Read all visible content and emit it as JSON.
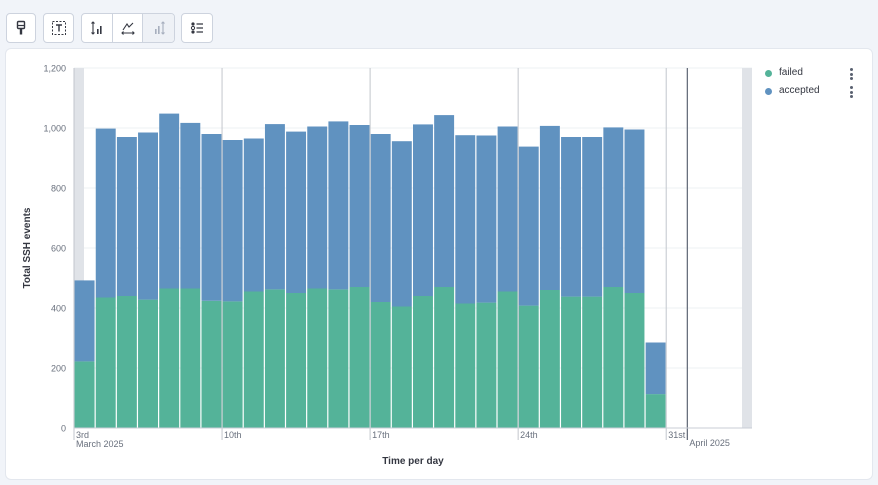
{
  "toolbar": {
    "buttons": [
      {
        "name": "paintbrush-icon"
      },
      {
        "name": "text-icon"
      }
    ],
    "group": [
      {
        "name": "axis-left-icon",
        "disabled": false
      },
      {
        "name": "axis-bottom-icon",
        "disabled": false
      },
      {
        "name": "axis-right-icon",
        "disabled": true
      }
    ],
    "legend_button": {
      "name": "legend-list-icon"
    }
  },
  "colors": {
    "failed": "#54b399",
    "accepted": "#6092c0",
    "grid": "#eef0f3",
    "shade": "#e0e3e8"
  },
  "chart_data": {
    "type": "bar",
    "stacked": true,
    "ylabel": "Total SSH events",
    "xlabel": "Time per day",
    "ylim": [
      0,
      1200
    ],
    "yticks": [
      "0",
      "200",
      "400",
      "600",
      "800",
      "1,000",
      "1,200"
    ],
    "ytick_values": [
      0,
      200,
      400,
      600,
      800,
      1000,
      1200
    ],
    "x_tick_labels": [
      {
        "day": 0,
        "label": "3rd",
        "sub": "March 2025"
      },
      {
        "day": 7,
        "label": "10th",
        "sub": ""
      },
      {
        "day": 14,
        "label": "17th",
        "sub": ""
      },
      {
        "day": 21,
        "label": "24th",
        "sub": ""
      },
      {
        "day": 28,
        "label": "31st",
        "sub": ""
      },
      {
        "day": 29,
        "label": "",
        "sub": "April 2025"
      }
    ],
    "legend_placement": "right",
    "series": [
      {
        "name": "failed",
        "color": "#54b399",
        "values": [
          222,
          435,
          440,
          428,
          465,
          465,
          424,
          422,
          455,
          462,
          450,
          465,
          462,
          470,
          420,
          405,
          440,
          470,
          415,
          418,
          455,
          408,
          460,
          438,
          438,
          470,
          450,
          113
        ]
      },
      {
        "name": "accepted",
        "color": "#6092c0",
        "values": [
          270,
          563,
          530,
          557,
          583,
          552,
          556,
          538,
          510,
          551,
          538,
          540,
          560,
          540,
          560,
          551,
          572,
          573,
          561,
          557,
          550,
          530,
          547,
          532,
          532,
          532,
          545,
          172
        ]
      }
    ]
  }
}
